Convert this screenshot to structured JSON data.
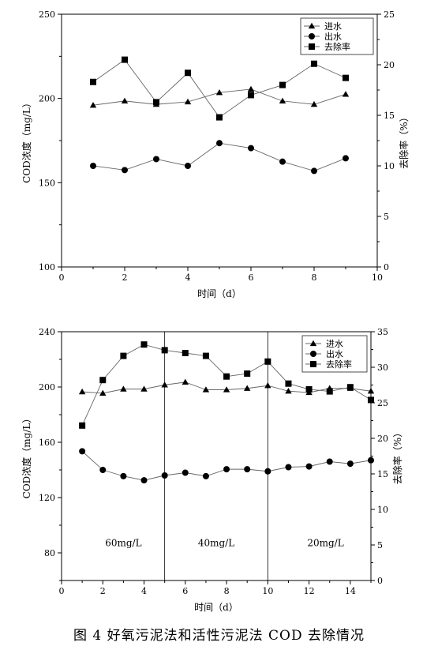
{
  "caption": "图 4   好氧污泥法和活性污泥法 COD 去除情况",
  "chart_data": [
    {
      "type": "line",
      "xlabel": "时间（d）",
      "ylabel_left": "COD浓度（mg/L）",
      "ylabel_right": "去除率（%）",
      "xlim": [
        0,
        10
      ],
      "ylim_left": [
        100,
        250
      ],
      "ylim_right": [
        0,
        25
      ],
      "x_ticks": [
        0,
        2,
        4,
        6,
        8,
        10
      ],
      "y_left_ticks": [
        100,
        150,
        200,
        250
      ],
      "y_right_ticks": [
        0,
        5,
        10,
        15,
        20,
        25
      ],
      "legend_position": "top-right",
      "x": [
        1,
        2,
        3,
        4,
        5,
        6,
        7,
        8,
        9
      ],
      "series": [
        {
          "name": "进水",
          "axis": "left",
          "marker": "triangle",
          "values": [
            196,
            198.5,
            196.5,
            198,
            203.5,
            205.5,
            198.5,
            196.5,
            202.5
          ]
        },
        {
          "name": "出水",
          "axis": "left",
          "marker": "circle",
          "values": [
            160,
            157.5,
            164,
            160,
            173.5,
            170.5,
            162.5,
            157,
            164.5
          ]
        },
        {
          "name": "去除率",
          "axis": "right",
          "marker": "square",
          "values": [
            18.3,
            20.5,
            16.3,
            19.2,
            14.8,
            17.0,
            18.0,
            20.1,
            18.7
          ]
        }
      ],
      "vlines": [],
      "regions": []
    },
    {
      "type": "line",
      "xlabel": "时间（d）",
      "ylabel_left": "COD浓度（mg/L）",
      "ylabel_right": "去除率（%）",
      "xlim": [
        0,
        15
      ],
      "ylim_left": [
        60,
        240
      ],
      "ylim_right": [
        0,
        35
      ],
      "x_ticks": [
        0,
        2,
        4,
        6,
        8,
        10,
        12,
        14
      ],
      "y_left_ticks": [
        80,
        120,
        160,
        200,
        240
      ],
      "y_right_ticks": [
        0,
        5,
        10,
        15,
        20,
        25,
        30,
        35
      ],
      "legend_position": "top-right",
      "x": [
        1,
        2,
        3,
        4,
        5,
        6,
        7,
        8,
        9,
        10,
        11,
        12,
        13,
        14,
        15
      ],
      "series": [
        {
          "name": "进水",
          "axis": "left",
          "marker": "triangle",
          "values": [
            196.5,
            195.5,
            198.5,
            198.5,
            201.5,
            203.5,
            198,
            198,
            199,
            201,
            197,
            196,
            199,
            199,
            197
          ]
        },
        {
          "name": "出水",
          "axis": "left",
          "marker": "circle",
          "values": [
            153.5,
            140,
            135.5,
            132.5,
            136,
            138,
            135.5,
            140.5,
            140.5,
            139,
            142,
            142.5,
            146,
            144.5,
            147
          ]
        },
        {
          "name": "去除率",
          "axis": "right",
          "marker": "square",
          "values": [
            21.8,
            28.2,
            31.6,
            33.2,
            32.4,
            32.0,
            31.6,
            28.7,
            29.1,
            30.8,
            27.7,
            26.9,
            26.6,
            27.2,
            25.4
          ]
        }
      ],
      "vlines": [
        5,
        10
      ],
      "regions": [
        {
          "label": "60mg/L",
          "x": 3,
          "y": 85
        },
        {
          "label": "40mg/L",
          "x": 7.5,
          "y": 85
        },
        {
          "label": "20mg/L",
          "x": 12.8,
          "y": 85
        }
      ]
    }
  ]
}
